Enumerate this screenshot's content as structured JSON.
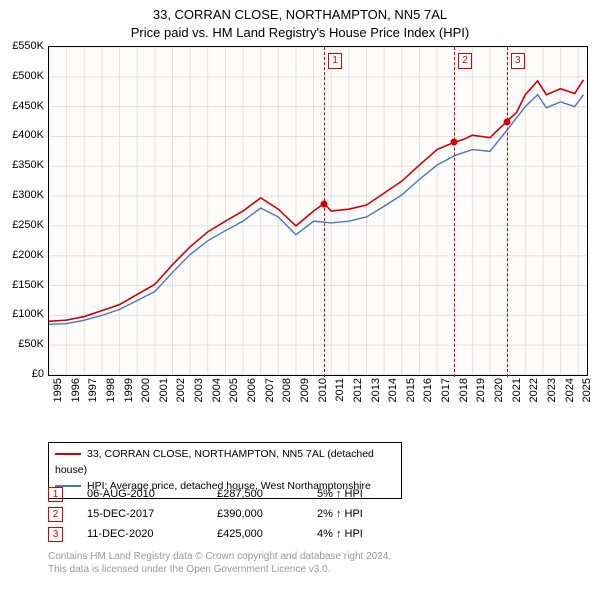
{
  "title_line1": "33, CORRAN CLOSE, NORTHAMPTON, NN5 7AL",
  "title_line2": "Price paid vs. HM Land Registry's House Price Index (HPI)",
  "chart": {
    "type": "line",
    "background_color": "#fefcfb",
    "grid_color": "#e3e0de",
    "border_color": "#000000",
    "xlim": [
      1995,
      2025.5
    ],
    "ylim": [
      0,
      550000
    ],
    "ytick_step": 50000,
    "y_prefix": "£",
    "y_suffix": "K",
    "y_divisor": 1000,
    "x_ticks": [
      1995,
      1996,
      1997,
      1998,
      1999,
      2000,
      2001,
      2002,
      2003,
      2004,
      2005,
      2006,
      2007,
      2008,
      2009,
      2010,
      2011,
      2012,
      2013,
      2014,
      2015,
      2016,
      2017,
      2018,
      2019,
      2020,
      2021,
      2022,
      2023,
      2024,
      2025
    ],
    "label_fontsize": 11,
    "series": [
      {
        "name": "property",
        "color": "#d40000",
        "line_width": 1.6,
        "legend": "33, CORRAN CLOSE, NORTHAMPTON, NN5 7AL (detached house)",
        "points": [
          [
            1995,
            90000
          ],
          [
            1996,
            92000
          ],
          [
            1997,
            98000
          ],
          [
            1998,
            108000
          ],
          [
            1999,
            118000
          ],
          [
            2000,
            135000
          ],
          [
            2001,
            152000
          ],
          [
            2002,
            185000
          ],
          [
            2003,
            215000
          ],
          [
            2004,
            240000
          ],
          [
            2005,
            258000
          ],
          [
            2006,
            275000
          ],
          [
            2007,
            297000
          ],
          [
            2008,
            278000
          ],
          [
            2009,
            250000
          ],
          [
            2010,
            275000
          ],
          [
            2010.6,
            287500
          ],
          [
            2011,
            275000
          ],
          [
            2012,
            278000
          ],
          [
            2013,
            285000
          ],
          [
            2014,
            305000
          ],
          [
            2015,
            325000
          ],
          [
            2016,
            352000
          ],
          [
            2017,
            378000
          ],
          [
            2017.96,
            390000
          ],
          [
            2018.5,
            395000
          ],
          [
            2019,
            402000
          ],
          [
            2020,
            398000
          ],
          [
            2020.95,
            425000
          ],
          [
            2021.5,
            440000
          ],
          [
            2022,
            470000
          ],
          [
            2022.7,
            493000
          ],
          [
            2023.2,
            470000
          ],
          [
            2024,
            480000
          ],
          [
            2024.8,
            472000
          ],
          [
            2025.3,
            495000
          ]
        ]
      },
      {
        "name": "hpi",
        "color": "#4a75c4",
        "line_width": 1.4,
        "legend": "HPI: Average price, detached house, West Northamptonshire",
        "points": [
          [
            1995,
            85000
          ],
          [
            1996,
            86000
          ],
          [
            1997,
            92000
          ],
          [
            1998,
            100000
          ],
          [
            1999,
            110000
          ],
          [
            2000,
            125000
          ],
          [
            2001,
            140000
          ],
          [
            2002,
            172000
          ],
          [
            2003,
            202000
          ],
          [
            2004,
            225000
          ],
          [
            2005,
            242000
          ],
          [
            2006,
            258000
          ],
          [
            2007,
            280000
          ],
          [
            2008,
            265000
          ],
          [
            2009,
            235000
          ],
          [
            2010,
            258000
          ],
          [
            2011,
            255000
          ],
          [
            2012,
            258000
          ],
          [
            2013,
            265000
          ],
          [
            2014,
            283000
          ],
          [
            2015,
            302000
          ],
          [
            2016,
            328000
          ],
          [
            2017,
            352000
          ],
          [
            2018,
            368000
          ],
          [
            2019,
            378000
          ],
          [
            2020,
            375000
          ],
          [
            2021,
            412000
          ],
          [
            2022,
            450000
          ],
          [
            2022.7,
            470000
          ],
          [
            2023.2,
            448000
          ],
          [
            2024,
            458000
          ],
          [
            2024.8,
            450000
          ],
          [
            2025.3,
            470000
          ]
        ]
      }
    ],
    "sale_markers": [
      {
        "idx": "1",
        "x": 2010.6,
        "y": 287500,
        "color": "#d40000"
      },
      {
        "idx": "2",
        "x": 2017.96,
        "y": 390000,
        "color": "#d40000"
      },
      {
        "idx": "3",
        "x": 2020.95,
        "y": 425000,
        "color": "#d40000"
      }
    ],
    "vline_color": "#d40000",
    "vbox_top": 6
  },
  "legend_box_border": "#000000",
  "sales": [
    {
      "idx": "1",
      "date": "06-AUG-2010",
      "price": "£287,500",
      "pct": "5% ↑ HPI"
    },
    {
      "idx": "2",
      "date": "15-DEC-2017",
      "price": "£390,000",
      "pct": "2% ↑ HPI"
    },
    {
      "idx": "3",
      "date": "11-DEC-2020",
      "price": "£425,000",
      "pct": "4% ↑ HPI"
    }
  ],
  "attribution_line1": "Contains HM Land Registry data © Crown copyright and database right 2024.",
  "attribution_line2": "This data is licensed under the Open Government Licence v3.0."
}
